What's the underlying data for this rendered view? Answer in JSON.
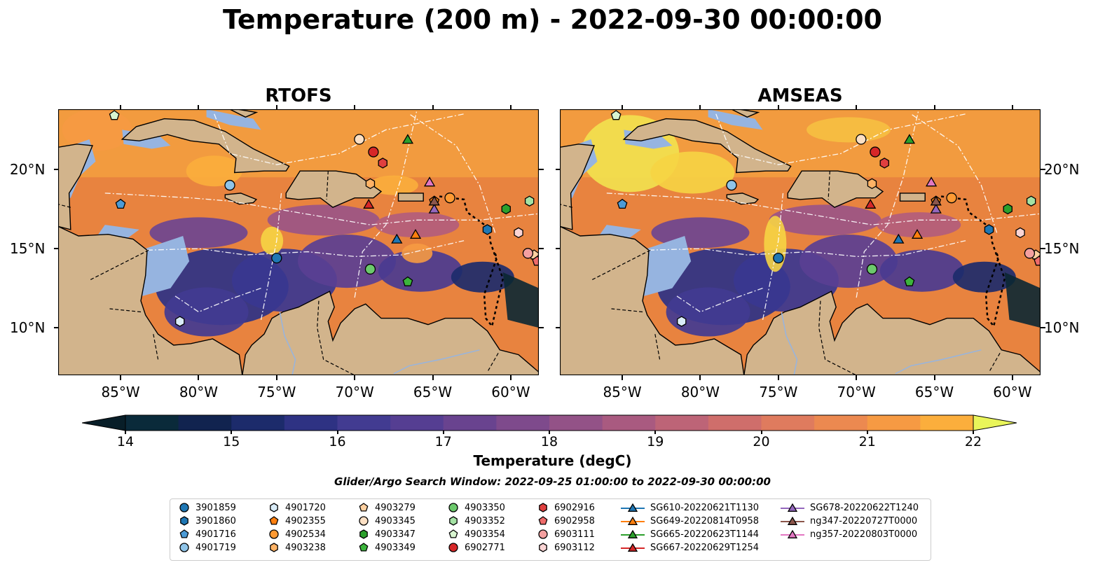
{
  "title": "Temperature (200 m) - 2022-09-30 00:00:00",
  "panels": [
    {
      "id": "rtofs",
      "title": "RTOFS"
    },
    {
      "id": "amseas",
      "title": "AMSEAS"
    }
  ],
  "lon_ticks": [
    "85°W",
    "80°W",
    "75°W",
    "70°W",
    "65°W",
    "60°W"
  ],
  "lon_values": [
    -85,
    -80,
    -75,
    -70,
    -65,
    -60
  ],
  "lat_ticks": [
    "20°N",
    "15°N",
    "10°N"
  ],
  "lat_values": [
    20,
    15,
    10
  ],
  "extent": {
    "lon": [
      -89,
      -58.2
    ],
    "lat": [
      7,
      23.8
    ]
  },
  "colorbar": {
    "label": "Temperature (degC)",
    "ticks": [
      "14",
      "15",
      "16",
      "17",
      "18",
      "19",
      "20",
      "21",
      "22"
    ],
    "min": 14,
    "max": 22,
    "step": 0.5,
    "colors": [
      "#0a2a3a",
      "#11234f",
      "#1c2b6b",
      "#2e3283",
      "#423b91",
      "#553e92",
      "#69438f",
      "#7e4a8c",
      "#935287",
      "#a95a80",
      "#bd6477",
      "#cf6e6b",
      "#df7b5e",
      "#ec8950",
      "#f69a43",
      "#fbae3c",
      "#f6d444"
    ],
    "under_color": "#081e28",
    "over_color": "#e9f55a"
  },
  "search_window": "Glider/Argo Search Window: 2022-09-25 01:00:00 to 2022-09-30 00:00:00",
  "colors": {
    "land": "#d2b48c",
    "shallow": "#96b4e0",
    "deep": "#0b2733"
  },
  "legend": [
    {
      "label": "3901859",
      "marker": "circle",
      "color": "#1f77b4",
      "lon": -75.0,
      "lat": 14.4
    },
    {
      "label": "3901860",
      "marker": "hexagon",
      "color": "#1f77b4",
      "lon": -61.5,
      "lat": 16.2
    },
    {
      "label": "4901716",
      "marker": "pentagon",
      "color": "#4c9bd6",
      "lon": -85.0,
      "lat": 17.8
    },
    {
      "label": "4901719",
      "marker": "circle",
      "color": "#8fc4e8",
      "lon": -78.0,
      "lat": 19.0
    },
    {
      "label": "4901720",
      "marker": "hexagon",
      "color": "#d9ecf8",
      "lon": -81.2,
      "lat": 10.4
    },
    {
      "label": "4902355",
      "marker": "pentagon",
      "color": "#ff7f0e",
      "lon": -64.9,
      "lat": 18.0
    },
    {
      "label": "4902534",
      "marker": "circle",
      "color": "#ff9a33",
      "lon": -63.9,
      "lat": 18.2
    },
    {
      "label": "4903238",
      "marker": "hexagon",
      "color": "#ffb366",
      "lon": -69.0,
      "lat": 19.1
    },
    {
      "label": "4903279",
      "marker": "pentagon",
      "color": "#ffd0a0",
      "lon": -58.5,
      "lat": 14.6
    },
    {
      "label": "4903345",
      "marker": "circle",
      "color": "#fde0c4",
      "lon": -69.7,
      "lat": 21.9
    },
    {
      "label": "4903347",
      "marker": "hexagon",
      "color": "#2ca02c",
      "lon": -60.3,
      "lat": 17.5
    },
    {
      "label": "4903349",
      "marker": "pentagon",
      "color": "#3cb43c",
      "lon": -66.6,
      "lat": 12.9
    },
    {
      "label": "4903350",
      "marker": "circle",
      "color": "#6cc96c",
      "lon": -69.0,
      "lat": 13.7
    },
    {
      "label": "4903352",
      "marker": "hexagon",
      "color": "#a4e2a4",
      "lon": -58.8,
      "lat": 18.0
    },
    {
      "label": "4903354",
      "marker": "pentagon",
      "color": "#d8f5d0",
      "lon": -85.4,
      "lat": 23.4
    },
    {
      "label": "6902771",
      "marker": "circle",
      "color": "#d62728",
      "lon": -68.8,
      "lat": 21.1
    },
    {
      "label": "6902916",
      "marker": "hexagon",
      "color": "#e0403f",
      "lon": -68.2,
      "lat": 20.4
    },
    {
      "label": "6902958",
      "marker": "pentagon",
      "color": "#ee6b6a",
      "lon": -58.3,
      "lat": 14.2
    },
    {
      "label": "6903111",
      "marker": "circle",
      "color": "#f4a0a0",
      "lon": -58.9,
      "lat": 14.7
    },
    {
      "label": "6903112",
      "marker": "hexagon",
      "color": "#fad4d4",
      "lon": -59.5,
      "lat": 16.0
    },
    {
      "label": "SG610-20220621T1130",
      "marker": "triangle",
      "color": "#1f77b4",
      "lon": -67.3,
      "lat": 15.6
    },
    {
      "label": "SG649-20220814T0958",
      "marker": "triangle",
      "color": "#ff7f0e",
      "lon": -66.1,
      "lat": 15.9
    },
    {
      "label": "SG665-20220623T1144",
      "marker": "triangle",
      "color": "#2ca02c",
      "lon": -66.6,
      "lat": 21.9
    },
    {
      "label": "SG667-20220629T1254",
      "marker": "triangle",
      "color": "#d62728",
      "lon": -69.1,
      "lat": 17.8
    },
    {
      "label": "SG678-20220622T1240",
      "marker": "triangle",
      "color": "#9467bd",
      "lon": -64.9,
      "lat": 17.5
    },
    {
      "label": "ng347-20220727T0000",
      "marker": "triangle",
      "color": "#8c564b",
      "lon": -64.9,
      "lat": 18.0
    },
    {
      "label": "ng357-20220803T0000",
      "marker": "triangle",
      "color": "#e377c2",
      "lon": -65.2,
      "lat": 19.2
    }
  ]
}
